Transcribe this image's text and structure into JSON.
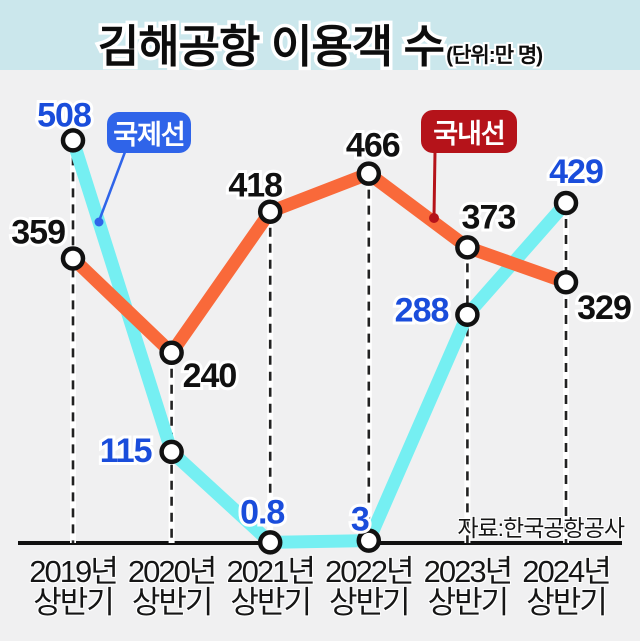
{
  "header": {
    "title": "김해공항 이용객 수",
    "unit": "(단위:만 명)"
  },
  "legend": {
    "international": "국제선",
    "domestic": "국내선"
  },
  "source": "자료:한국공항공사",
  "colors": {
    "header_bg": "#cbe7ec",
    "chart_bg": "#f0f0f1",
    "international_line": "#75eff2",
    "domestic_line": "#f9693a",
    "international_value_label": "#1a4ddb",
    "domestic_value_label": "#111111",
    "legend_international_bg": "#2f64e9",
    "legend_domestic_bg": "#b5131a",
    "axis": "#111111"
  },
  "chart_data": {
    "type": "line",
    "title": "김해공항 이용객 수",
    "unit": "만 명",
    "categories": [
      "2019년 상반기",
      "2020년 상반기",
      "2021년 상반기",
      "2022년 상반기",
      "2023년 상반기",
      "2024년 상반기"
    ],
    "series": [
      {
        "name": "국제선",
        "values": [
          508,
          115,
          0.8,
          3,
          288,
          429
        ],
        "labels": [
          "508",
          "115",
          "0.8",
          "3",
          "288",
          "429"
        ]
      },
      {
        "name": "국내선",
        "values": [
          359,
          240,
          418,
          466,
          373,
          329
        ],
        "labels": [
          "359",
          "240",
          "418",
          "466",
          "373",
          "329"
        ]
      }
    ],
    "ylim": [
      0,
      508
    ],
    "baseline_value": 0,
    "grid": "dashed-vertical-droplines",
    "legend_position": "inside-top"
  }
}
